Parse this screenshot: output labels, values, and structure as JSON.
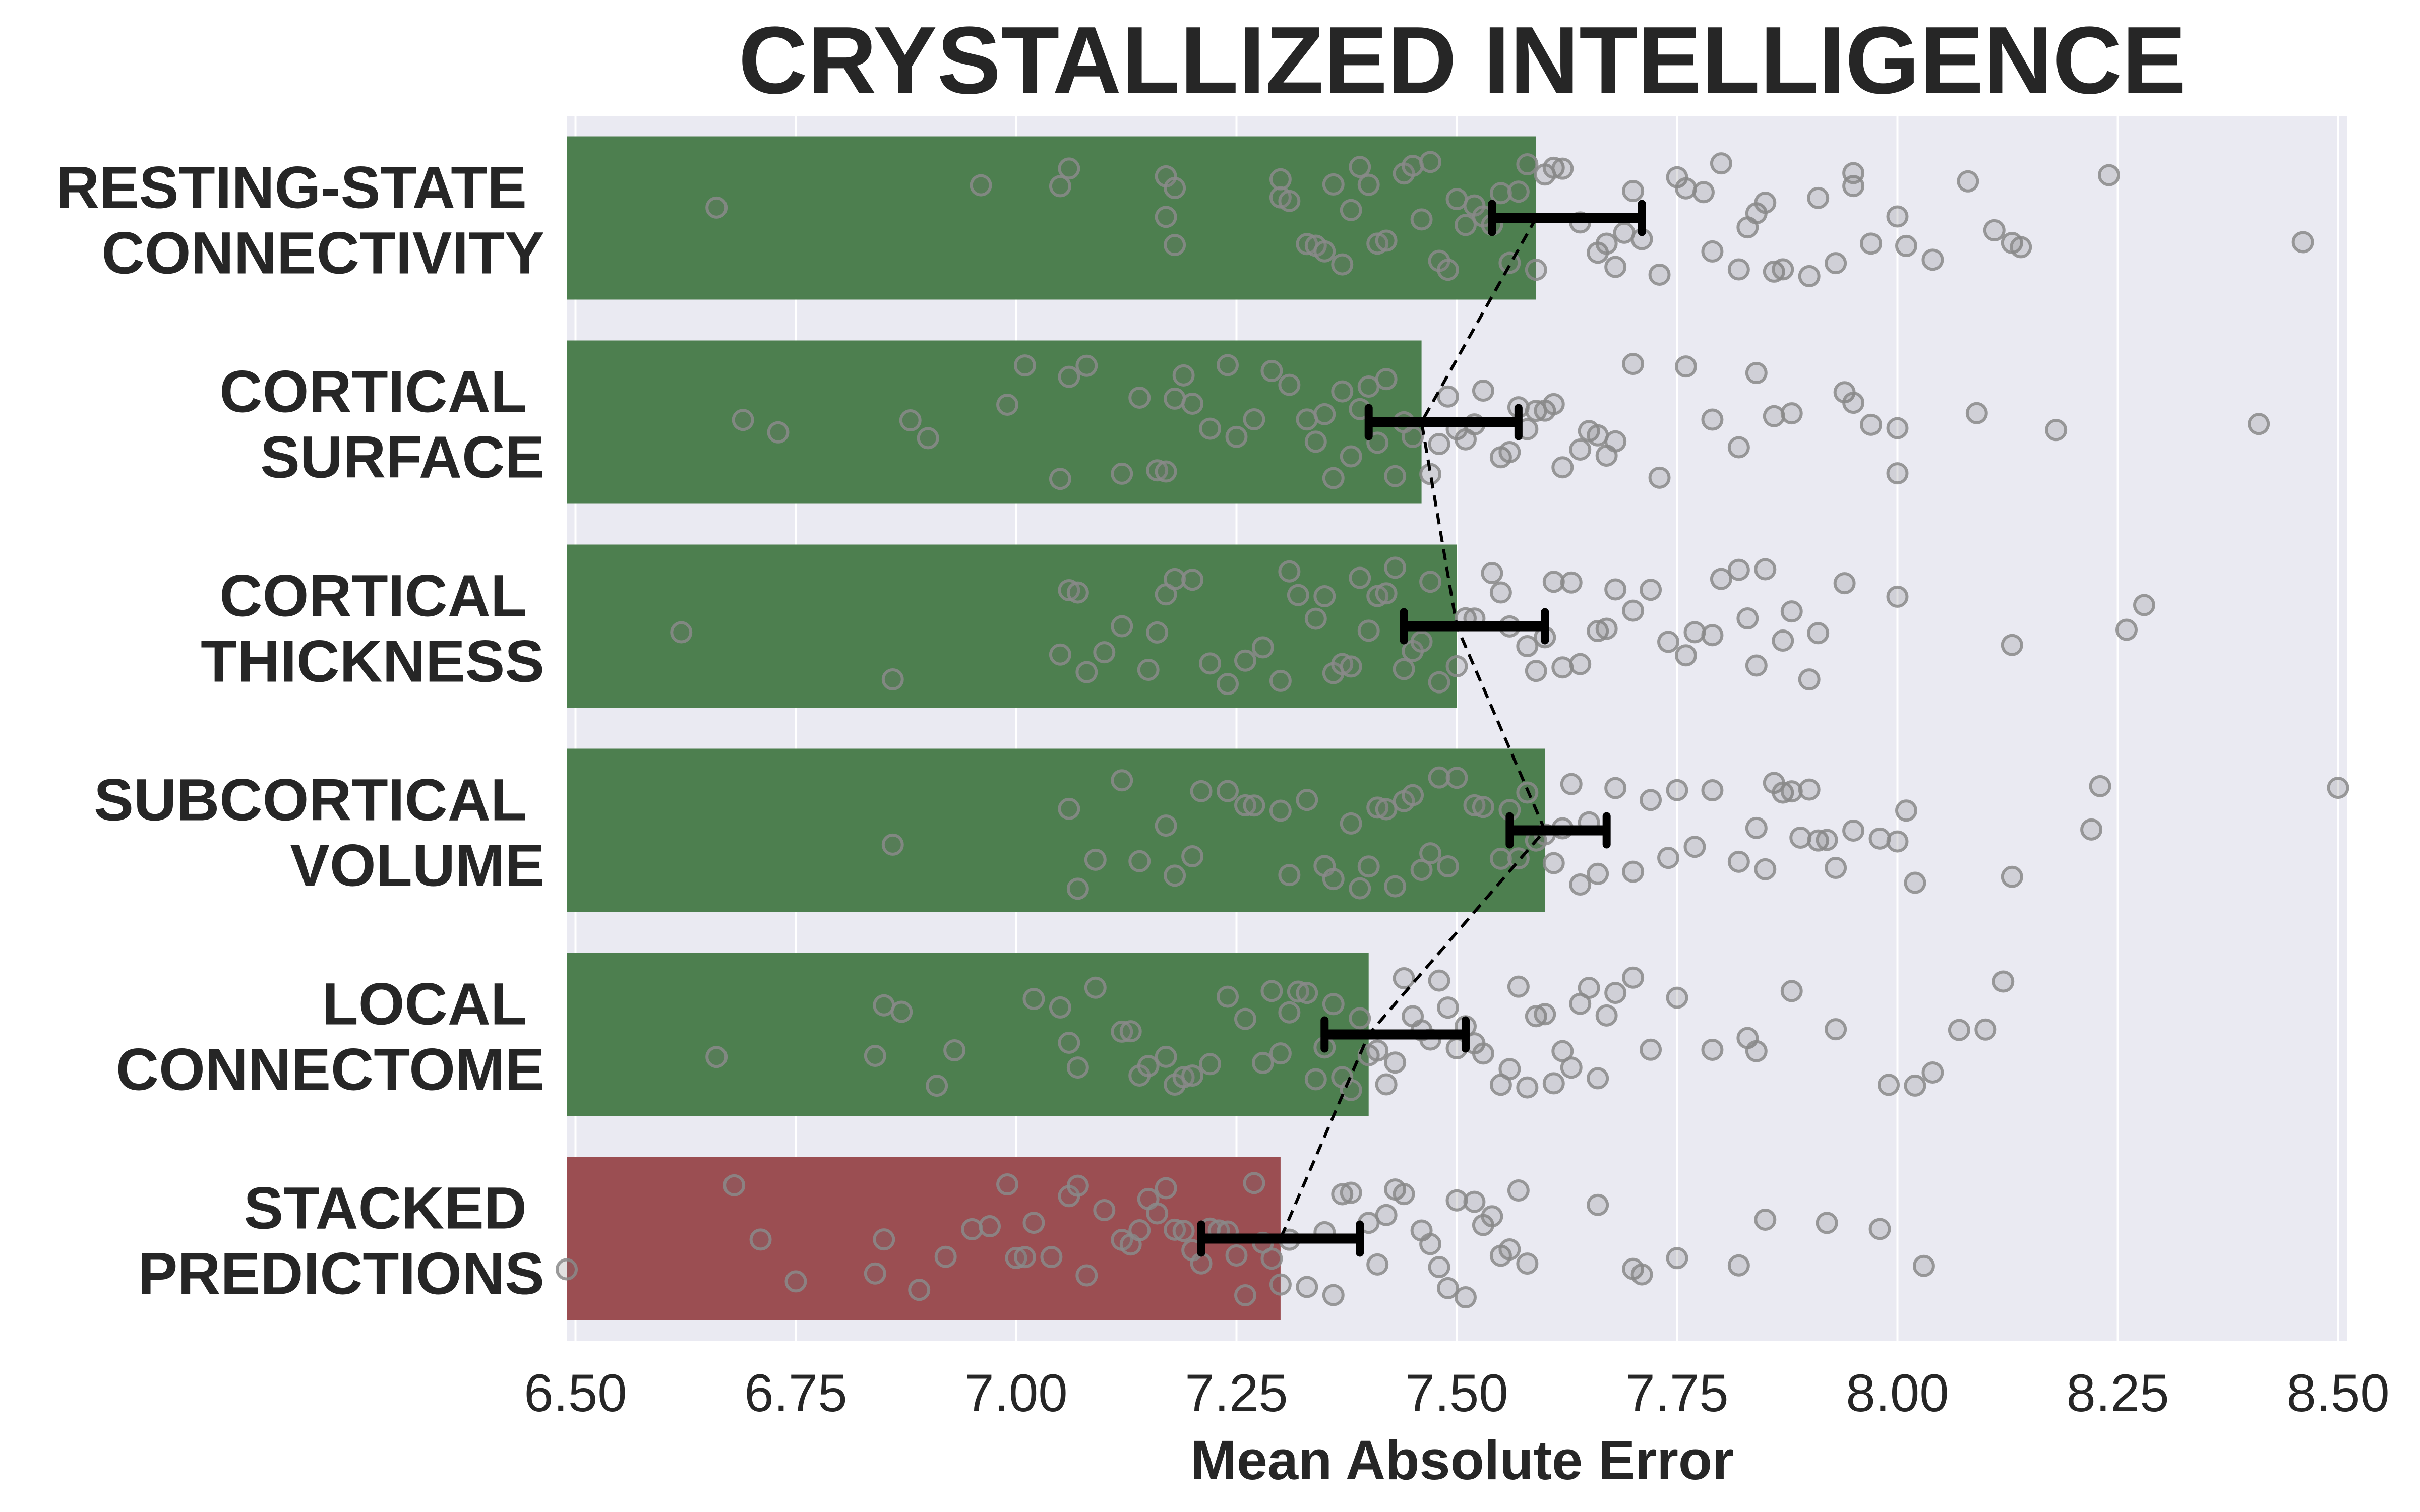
{
  "chart_data": {
    "type": "bar",
    "orientation": "horizontal",
    "title": "CRYSTALLIZED INTELLIGENCE",
    "xlabel": "Mean Absolute Error",
    "ylabel": "",
    "xlim": [
      6.49,
      8.51
    ],
    "xticks": [
      "6.50",
      "6.75",
      "7.00",
      "7.25",
      "7.50",
      "7.75",
      "8.00",
      "8.25",
      "8.50"
    ],
    "grid": true,
    "background_color": "#eaeaf2",
    "bar_colors": {
      "default": "#4d7f4f",
      "highlight": "#9b4e52"
    },
    "categories": [
      {
        "line1": "RESTING-STATE",
        "line2": "CONNECTIVITY",
        "value": 7.59,
        "ci": [
          7.54,
          7.71
        ],
        "highlight": false,
        "points": [
          6.66,
          6.96,
          7.05,
          7.06,
          7.17,
          7.17,
          7.18,
          7.18,
          7.3,
          7.3,
          7.31,
          7.33,
          7.34,
          7.35,
          7.36,
          7.37,
          7.38,
          7.39,
          7.4,
          7.41,
          7.42,
          7.44,
          7.45,
          7.46,
          7.47,
          7.48,
          7.49,
          7.5,
          7.51,
          7.52,
          7.53,
          7.54,
          7.55,
          7.56,
          7.57,
          7.58,
          7.59,
          7.6,
          7.61,
          7.62,
          7.64,
          7.66,
          7.67,
          7.68,
          7.69,
          7.7,
          7.71,
          7.73,
          7.75,
          7.76,
          7.78,
          7.79,
          7.8,
          7.82,
          7.83,
          7.84,
          7.85,
          7.86,
          7.87,
          7.9,
          7.91,
          7.93,
          7.95,
          7.95,
          7.97,
          8.0,
          8.01,
          8.04,
          8.08,
          8.11,
          8.13,
          8.14,
          8.24,
          8.46
        ]
      },
      {
        "line1": "CORTICAL",
        "line2": "SURFACE",
        "value": 7.46,
        "ci": [
          7.4,
          7.57
        ],
        "highlight": false,
        "points": [
          6.69,
          6.73,
          6.88,
          6.9,
          6.99,
          7.01,
          7.05,
          7.06,
          7.08,
          7.12,
          7.14,
          7.16,
          7.17,
          7.18,
          7.19,
          7.2,
          7.22,
          7.24,
          7.25,
          7.27,
          7.29,
          7.31,
          7.33,
          7.34,
          7.35,
          7.36,
          7.37,
          7.38,
          7.39,
          7.4,
          7.41,
          7.42,
          7.43,
          7.44,
          7.45,
          7.47,
          7.48,
          7.49,
          7.5,
          7.51,
          7.52,
          7.53,
          7.55,
          7.56,
          7.57,
          7.58,
          7.59,
          7.6,
          7.61,
          7.62,
          7.64,
          7.65,
          7.66,
          7.67,
          7.68,
          7.7,
          7.73,
          7.76,
          7.79,
          7.82,
          7.84,
          7.86,
          7.88,
          7.94,
          7.95,
          7.97,
          8.0,
          8.0,
          8.09,
          8.18,
          8.41
        ]
      },
      {
        "line1": "CORTICAL",
        "line2": "THICKNESS",
        "value": 7.5,
        "ci": [
          7.44,
          7.6
        ],
        "highlight": false,
        "points": [
          6.62,
          6.86,
          7.05,
          7.06,
          7.07,
          7.08,
          7.1,
          7.12,
          7.15,
          7.16,
          7.17,
          7.18,
          7.2,
          7.22,
          7.24,
          7.26,
          7.28,
          7.3,
          7.31,
          7.32,
          7.34,
          7.35,
          7.36,
          7.37,
          7.38,
          7.39,
          7.4,
          7.41,
          7.42,
          7.43,
          7.44,
          7.45,
          7.46,
          7.47,
          7.48,
          7.5,
          7.51,
          7.52,
          7.54,
          7.55,
          7.56,
          7.58,
          7.59,
          7.6,
          7.61,
          7.62,
          7.63,
          7.64,
          7.66,
          7.67,
          7.68,
          7.7,
          7.72,
          7.74,
          7.76,
          7.77,
          7.79,
          7.8,
          7.82,
          7.83,
          7.84,
          7.85,
          7.87,
          7.88,
          7.9,
          7.91,
          7.94,
          8.0,
          8.13,
          8.26,
          8.28
        ]
      },
      {
        "line1": "SUBCORTICAL",
        "line2": "VOLUME",
        "value": 7.6,
        "ci": [
          7.56,
          7.67
        ],
        "highlight": false,
        "points": [
          6.86,
          7.06,
          7.07,
          7.09,
          7.12,
          7.14,
          7.17,
          7.18,
          7.2,
          7.21,
          7.24,
          7.26,
          7.27,
          7.3,
          7.31,
          7.33,
          7.35,
          7.36,
          7.38,
          7.39,
          7.4,
          7.41,
          7.42,
          7.43,
          7.44,
          7.45,
          7.46,
          7.47,
          7.48,
          7.49,
          7.5,
          7.52,
          7.53,
          7.55,
          7.56,
          7.57,
          7.58,
          7.59,
          7.6,
          7.61,
          7.62,
          7.63,
          7.64,
          7.65,
          7.66,
          7.68,
          7.7,
          7.72,
          7.74,
          7.75,
          7.77,
          7.79,
          7.82,
          7.84,
          7.85,
          7.86,
          7.87,
          7.88,
          7.89,
          7.9,
          7.91,
          7.92,
          7.93,
          7.95,
          7.98,
          8.0,
          8.01,
          8.02,
          8.13,
          8.22,
          8.23,
          8.5
        ]
      },
      {
        "line1": "LOCAL",
        "line2": "CONNECTOME",
        "value": 7.4,
        "ci": [
          7.35,
          7.51
        ],
        "highlight": false,
        "points": [
          6.66,
          6.84,
          6.85,
          6.87,
          6.91,
          6.93,
          7.02,
          7.05,
          7.06,
          7.07,
          7.09,
          7.12,
          7.13,
          7.14,
          7.15,
          7.17,
          7.18,
          7.19,
          7.2,
          7.22,
          7.24,
          7.26,
          7.28,
          7.29,
          7.3,
          7.31,
          7.32,
          7.33,
          7.34,
          7.35,
          7.36,
          7.37,
          7.38,
          7.39,
          7.4,
          7.41,
          7.42,
          7.43,
          7.44,
          7.45,
          7.46,
          7.47,
          7.48,
          7.49,
          7.5,
          7.51,
          7.52,
          7.53,
          7.55,
          7.56,
          7.57,
          7.58,
          7.59,
          7.6,
          7.61,
          7.62,
          7.63,
          7.64,
          7.65,
          7.66,
          7.67,
          7.68,
          7.7,
          7.72,
          7.75,
          7.79,
          7.83,
          7.84,
          7.88,
          7.93,
          7.99,
          8.02,
          8.04,
          8.07,
          8.1,
          8.12
        ]
      },
      {
        "line1": "STACKED",
        "line2": "PREDICTIONS",
        "value": 7.3,
        "ci": [
          7.21,
          7.39
        ],
        "highlight": true,
        "points": [
          6.49,
          6.68,
          6.71,
          6.75,
          6.84,
          6.85,
          6.89,
          6.92,
          6.95,
          6.97,
          6.99,
          7.0,
          7.01,
          7.02,
          7.04,
          7.06,
          7.07,
          7.08,
          7.1,
          7.12,
          7.13,
          7.14,
          7.15,
          7.16,
          7.17,
          7.18,
          7.19,
          7.2,
          7.21,
          7.22,
          7.23,
          7.24,
          7.25,
          7.26,
          7.27,
          7.28,
          7.29,
          7.3,
          7.31,
          7.33,
          7.35,
          7.36,
          7.37,
          7.38,
          7.4,
          7.41,
          7.42,
          7.43,
          7.44,
          7.46,
          7.47,
          7.48,
          7.49,
          7.5,
          7.51,
          7.52,
          7.53,
          7.54,
          7.55,
          7.56,
          7.57,
          7.58,
          7.66,
          7.7,
          7.71,
          7.75,
          7.82,
          7.85,
          7.92,
          7.98,
          8.03
        ]
      }
    ]
  }
}
